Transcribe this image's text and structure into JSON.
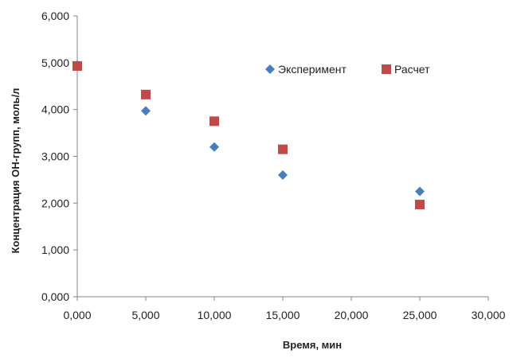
{
  "chart_data": {
    "type": "scatter",
    "title": "",
    "xlabel": "Время, мин",
    "ylabel": "Концентрация  ОН-групп, моль/л",
    "xlim": [
      0,
      30
    ],
    "ylim": [
      0,
      6
    ],
    "x_ticks": [
      0,
      5,
      10,
      15,
      20,
      25,
      30
    ],
    "y_ticks": [
      0,
      1,
      2,
      3,
      4,
      5,
      6
    ],
    "x_tick_labels": [
      "0,000",
      "5,000",
      "10,000",
      "15,000",
      "20,000",
      "25,000",
      "30,000"
    ],
    "y_tick_labels": [
      "0,000",
      "1,000",
      "2,000",
      "3,000",
      "4,000",
      "5,000",
      "6,000"
    ],
    "grid": false,
    "legend_position": "top-right",
    "series": [
      {
        "name": "Эксперимент",
        "marker": "diamond",
        "color": "#4a7ebb",
        "points": [
          {
            "x": 0,
            "y": 4.95
          },
          {
            "x": 5,
            "y": 3.97
          },
          {
            "x": 10,
            "y": 3.2
          },
          {
            "x": 15,
            "y": 2.6
          },
          {
            "x": 25,
            "y": 2.25
          }
        ]
      },
      {
        "name": "Расчет",
        "marker": "square",
        "color": "#be4b48",
        "points": [
          {
            "x": 0,
            "y": 4.93
          },
          {
            "x": 5,
            "y": 4.32
          },
          {
            "x": 10,
            "y": 3.75
          },
          {
            "x": 15,
            "y": 3.15
          },
          {
            "x": 25,
            "y": 1.97
          }
        ]
      }
    ]
  }
}
